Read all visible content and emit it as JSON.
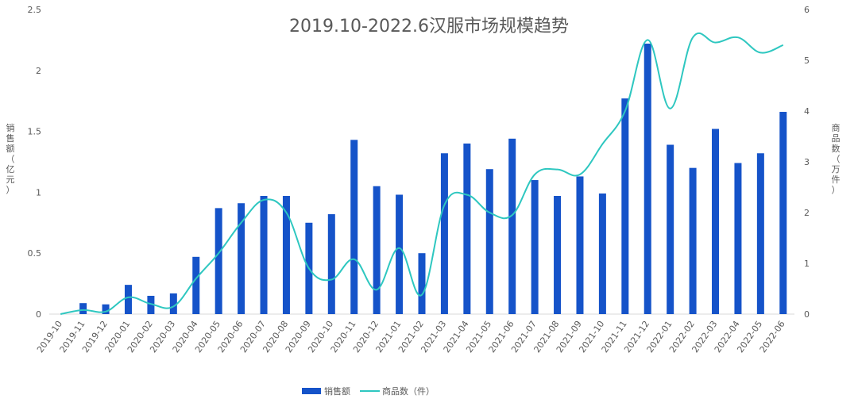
{
  "chart_data": {
    "type": "bar+line",
    "title": "2019.10-2022.6汉服市场规模趋势",
    "categories": [
      "2019-10",
      "2019-11",
      "2019-12",
      "2020-01",
      "2020-02",
      "2020-03",
      "2020-04",
      "2020-05",
      "2020-06",
      "2020-07",
      "2020-08",
      "2020-09",
      "2020-10",
      "2020-11",
      "2020-12",
      "2021-01",
      "2021-02",
      "2021-03",
      "2021-04",
      "2021-05",
      "2021-06",
      "2021-07",
      "2021-08",
      "2021-09",
      "2021-10",
      "2021-11",
      "2021-12",
      "2022-01",
      "2022-02",
      "2022-03",
      "2022-04",
      "2022-05",
      "2022-06"
    ],
    "series": [
      {
        "name": "销售额",
        "type": "bar",
        "axis": "left",
        "color": "#1553c9",
        "values": [
          0,
          0.09,
          0.08,
          0.24,
          0.15,
          0.17,
          0.47,
          0.87,
          0.91,
          0.97,
          0.97,
          0.75,
          0.82,
          1.43,
          1.05,
          0.98,
          0.5,
          1.32,
          1.4,
          1.19,
          1.44,
          1.1,
          0.97,
          1.13,
          0.99,
          1.77,
          2.22,
          1.39,
          1.2,
          1.52,
          1.24,
          1.32,
          1.66
        ]
      },
      {
        "name": "商品数（件）",
        "type": "line",
        "axis": "right",
        "color": "#2ec7c0",
        "values": [
          0,
          0.08,
          0.05,
          0.33,
          0.2,
          0.15,
          0.7,
          1.2,
          1.8,
          2.25,
          2.0,
          0.9,
          0.68,
          1.08,
          0.48,
          1.3,
          0.38,
          2.15,
          2.35,
          2.0,
          1.95,
          2.75,
          2.85,
          2.75,
          3.35,
          4.0,
          5.4,
          4.05,
          5.45,
          5.35,
          5.45,
          5.15,
          5.3
        ]
      }
    ],
    "yleft": {
      "label": "销售额（亿元）",
      "ticks": [
        "0",
        "0.5",
        "1",
        "1.5",
        "2",
        "2.5"
      ],
      "range": [
        0,
        2.5
      ]
    },
    "yright": {
      "label": "商品数（万件）",
      "ticks": [
        "0",
        "1",
        "2",
        "3",
        "4",
        "5",
        "6"
      ],
      "range": [
        0,
        6
      ]
    },
    "legend_position": "bottom-left",
    "grid": false
  }
}
